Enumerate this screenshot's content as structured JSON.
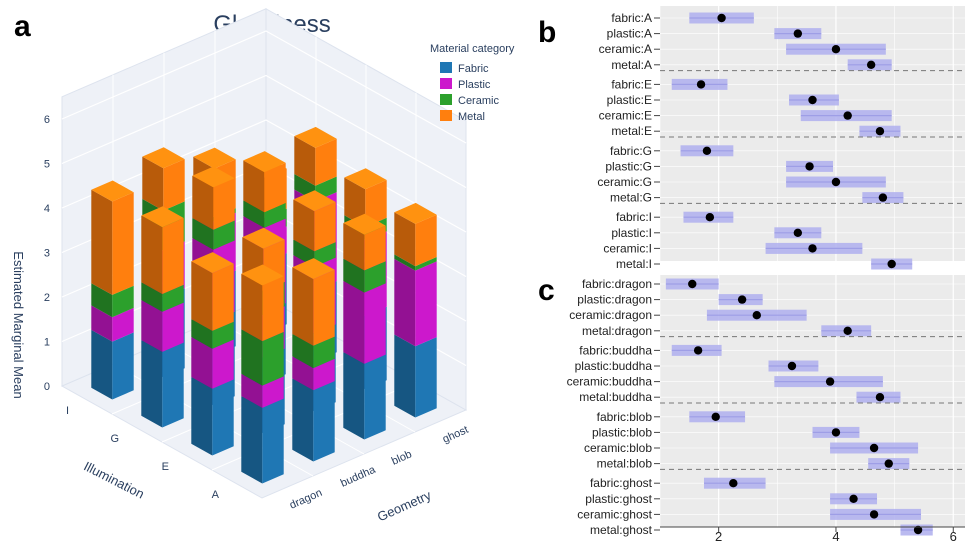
{
  "panel_labels": {
    "a": "a",
    "b": "b",
    "c": "c"
  },
  "colors": {
    "fabric": "#1f77b4",
    "plastic": "#cc18cc",
    "ceramic": "#2ca02c",
    "metal": "#ff7f0e",
    "ci": "#b3b3ee",
    "point": "#000000",
    "forest_bg": "#ebebeb"
  },
  "chart_data": [
    {
      "type": "bar",
      "subtype": "3d-stacked-bar",
      "title": "Glossiness",
      "zlabel": "Estimated Marginal Mean",
      "xlabel": "Illumination",
      "ylabel": "Geometry",
      "zlim": [
        0,
        6
      ],
      "z_ticks": [
        "0",
        "1",
        "2",
        "3",
        "4",
        "5",
        "6"
      ],
      "illumination": [
        "I",
        "G",
        "E",
        "A"
      ],
      "geometry": [
        "dragon",
        "buddha",
        "blob",
        "ghost"
      ],
      "legend_title": "Material category",
      "legend_position": "top-right",
      "series_names": [
        "Fabric",
        "Plastic",
        "Ceramic",
        "Metal"
      ],
      "bars": [
        {
          "illum": "I",
          "geom": "dragon",
          "values": [
            1.3,
            0.55,
            0.5,
            2.1
          ]
        },
        {
          "illum": "I",
          "geom": "buddha",
          "values": [
            1.8,
            1.05,
            0.9,
            0.95
          ]
        },
        {
          "illum": "I",
          "geom": "blob",
          "values": [
            1.7,
            1.3,
            0.1,
            1.1
          ]
        },
        {
          "illum": "I",
          "geom": "ghost",
          "values": [
            1.6,
            0.6,
            0.4,
            0.9
          ]
        },
        {
          "illum": "G",
          "geom": "dragon",
          "values": [
            1.7,
            0.9,
            0.4,
            1.5
          ]
        },
        {
          "illum": "G",
          "geom": "buddha",
          "values": [
            1.9,
            1.6,
            0.45,
            0.95
          ]
        },
        {
          "illum": "G",
          "geom": "blob",
          "values": [
            1.6,
            1.9,
            0.35,
            0.9
          ]
        },
        {
          "illum": "G",
          "geom": "ghost",
          "values": [
            1.6,
            2.0,
            0.35,
            0.85
          ]
        },
        {
          "illum": "E",
          "geom": "dragon",
          "values": [
            1.5,
            0.9,
            0.4,
            1.3
          ]
        },
        {
          "illum": "E",
          "geom": "buddha",
          "values": [
            1.7,
            0.95,
            0.55,
            0.95
          ]
        },
        {
          "illum": "E",
          "geom": "blob",
          "values": [
            1.75,
            1.5,
            0.35,
            0.9
          ]
        },
        {
          "illum": "E",
          "geom": "ghost",
          "values": [
            1.65,
            1.7,
            0.3,
            0.85
          ]
        },
        {
          "illum": "A",
          "geom": "dragon",
          "values": [
            1.7,
            0.5,
            1.0,
            1.25
          ]
        },
        {
          "illum": "A",
          "geom": "buddha",
          "values": [
            1.6,
            0.5,
            0.5,
            1.5
          ]
        },
        {
          "illum": "A",
          "geom": "blob",
          "values": [
            1.7,
            1.6,
            0.5,
            0.8
          ]
        },
        {
          "illum": "A",
          "geom": "ghost",
          "values": [
            1.6,
            1.7,
            0.1,
            0.95
          ]
        }
      ]
    },
    {
      "type": "scatter",
      "subtype": "forest-plot",
      "panel": "b",
      "xlim": [
        1,
        6.2
      ],
      "x_ticks": [
        2,
        4,
        6
      ],
      "groups": [
        {
          "rows": [
            {
              "label": "fabric:A",
              "mean": 2.05,
              "lo": 1.5,
              "hi": 2.6
            },
            {
              "label": "plastic:A",
              "mean": 3.35,
              "lo": 2.95,
              "hi": 3.75
            },
            {
              "label": "ceramic:A",
              "mean": 4.0,
              "lo": 3.15,
              "hi": 4.85
            },
            {
              "label": "metal:A",
              "mean": 4.6,
              "lo": 4.2,
              "hi": 4.95
            }
          ]
        },
        {
          "rows": [
            {
              "label": "fabric:E",
              "mean": 1.7,
              "lo": 1.2,
              "hi": 2.15
            },
            {
              "label": "plastic:E",
              "mean": 3.6,
              "lo": 3.2,
              "hi": 4.05
            },
            {
              "label": "ceramic:E",
              "mean": 4.2,
              "lo": 3.4,
              "hi": 4.95
            },
            {
              "label": "metal:E",
              "mean": 4.75,
              "lo": 4.4,
              "hi": 5.1
            }
          ]
        },
        {
          "rows": [
            {
              "label": "fabric:G",
              "mean": 1.8,
              "lo": 1.35,
              "hi": 2.25
            },
            {
              "label": "plastic:G",
              "mean": 3.55,
              "lo": 3.15,
              "hi": 3.95
            },
            {
              "label": "ceramic:G",
              "mean": 4.0,
              "lo": 3.15,
              "hi": 4.85
            },
            {
              "label": "metal:G",
              "mean": 4.8,
              "lo": 4.45,
              "hi": 5.15
            }
          ]
        },
        {
          "rows": [
            {
              "label": "fabric:I",
              "mean": 1.85,
              "lo": 1.4,
              "hi": 2.25
            },
            {
              "label": "plastic:I",
              "mean": 3.35,
              "lo": 2.95,
              "hi": 3.75
            },
            {
              "label": "ceramic:I",
              "mean": 3.6,
              "lo": 2.8,
              "hi": 4.45
            },
            {
              "label": "metal:I",
              "mean": 4.95,
              "lo": 4.6,
              "hi": 5.3
            }
          ]
        }
      ]
    },
    {
      "type": "scatter",
      "subtype": "forest-plot",
      "panel": "c",
      "xlim": [
        1,
        6.2
      ],
      "x_ticks": [
        2,
        4,
        6
      ],
      "x_tick_labels": [
        "2",
        "4",
        "6"
      ],
      "groups": [
        {
          "rows": [
            {
              "label": "fabric:dragon",
              "mean": 1.55,
              "lo": 1.1,
              "hi": 2.0
            },
            {
              "label": "plastic:dragon",
              "mean": 2.4,
              "lo": 2.0,
              "hi": 2.75
            },
            {
              "label": "ceramic:dragon",
              "mean": 2.65,
              "lo": 1.8,
              "hi": 3.5
            },
            {
              "label": "metal:dragon",
              "mean": 4.2,
              "lo": 3.75,
              "hi": 4.6
            }
          ]
        },
        {
          "rows": [
            {
              "label": "fabric:buddha",
              "mean": 1.65,
              "lo": 1.2,
              "hi": 2.05
            },
            {
              "label": "plastic:buddha",
              "mean": 3.25,
              "lo": 2.85,
              "hi": 3.7
            },
            {
              "label": "ceramic:buddha",
              "mean": 3.9,
              "lo": 2.95,
              "hi": 4.8
            },
            {
              "label": "metal:buddha",
              "mean": 4.75,
              "lo": 4.35,
              "hi": 5.1
            }
          ]
        },
        {
          "rows": [
            {
              "label": "fabric:blob",
              "mean": 1.95,
              "lo": 1.5,
              "hi": 2.45
            },
            {
              "label": "plastic:blob",
              "mean": 4.0,
              "lo": 3.6,
              "hi": 4.4
            },
            {
              "label": "ceramic:blob",
              "mean": 4.65,
              "lo": 3.9,
              "hi": 5.4
            },
            {
              "label": "metal:blob",
              "mean": 4.9,
              "lo": 4.55,
              "hi": 5.25
            }
          ]
        },
        {
          "rows": [
            {
              "label": "fabric:ghost",
              "mean": 2.25,
              "lo": 1.75,
              "hi": 2.8
            },
            {
              "label": "plastic:ghost",
              "mean": 4.3,
              "lo": 3.9,
              "hi": 4.7
            },
            {
              "label": "ceramic:ghost",
              "mean": 4.65,
              "lo": 3.9,
              "hi": 5.45
            },
            {
              "label": "metal:ghost",
              "mean": 5.4,
              "lo": 5.1,
              "hi": 5.65
            }
          ]
        }
      ]
    }
  ]
}
